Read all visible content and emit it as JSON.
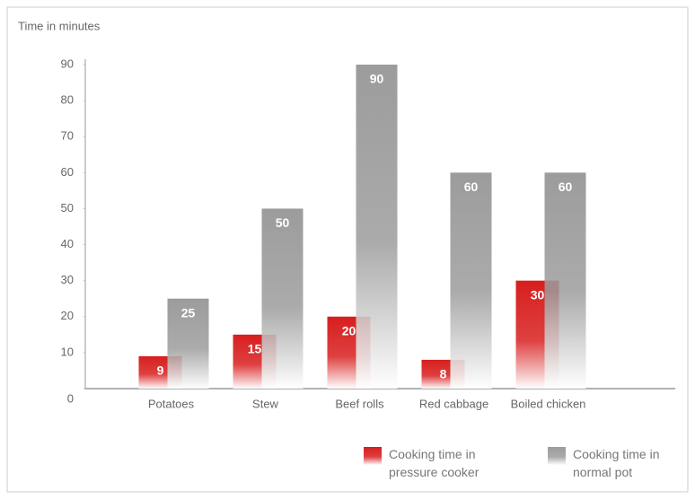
{
  "chart_data": {
    "type": "bar",
    "y_axis_label": "Time in minutes",
    "categories": [
      "Potatoes",
      "Stew",
      "Beef rolls",
      "Red cabbage",
      "Boiled chicken"
    ],
    "series": [
      {
        "name": "Cooking time in pressure cooker",
        "color": "#d81e1e",
        "values": [
          9,
          15,
          20,
          8,
          30
        ]
      },
      {
        "name": "Cooking time in normal pot",
        "color": "#9c9c9c",
        "values": [
          25,
          50,
          90,
          60,
          60
        ]
      }
    ],
    "ylim": [
      0,
      90
    ],
    "yticks": [
      0,
      10,
      20,
      30,
      40,
      50,
      60,
      70,
      80,
      90
    ]
  }
}
